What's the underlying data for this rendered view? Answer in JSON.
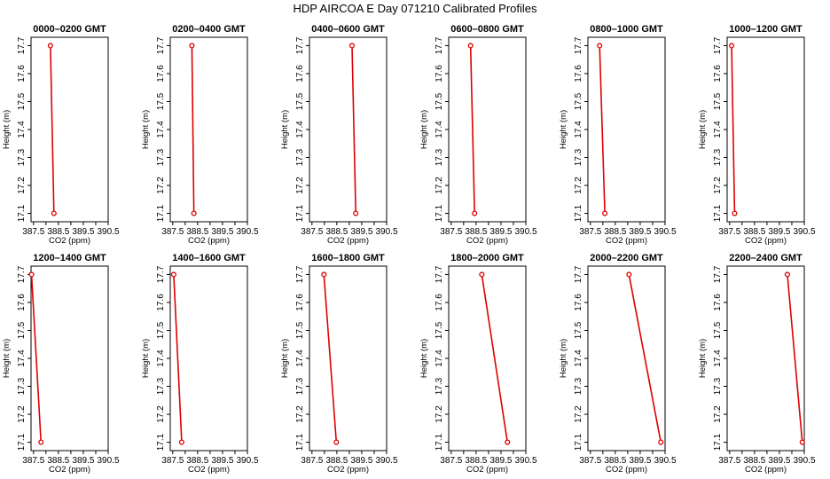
{
  "figure_title": "HDP  AIRCOA E  Day 071210  Calibrated Profiles",
  "colors": {
    "series": "#dd0000",
    "axes": "#000000"
  },
  "chart_data": {
    "type": "line",
    "title": "HDP  AIRCOA E  Day 071210  Calibrated Profiles",
    "xlabel": "CO2 (ppm)",
    "ylabel": "Height (m)",
    "xlim": [
      387.4,
      390.5
    ],
    "ylim": [
      17.07,
      17.73
    ],
    "xticks": [
      "387.5",
      "388.5",
      "389.5",
      "390.5"
    ],
    "xticks_minor": [
      "388",
      "389",
      "390"
    ],
    "yticks": [
      "17.1",
      "17.2",
      "17.3",
      "17.4",
      "17.5",
      "17.6",
      "17.7"
    ],
    "panels": [
      {
        "title": "0000–0200 GMT",
        "heights": [
          17.7,
          17.1
        ],
        "co2": [
          388.18,
          388.32
        ]
      },
      {
        "title": "0200–0400 GMT",
        "heights": [
          17.7,
          17.1
        ],
        "co2": [
          388.27,
          388.35
        ]
      },
      {
        "title": "0400–0600 GMT",
        "heights": [
          17.7,
          17.1
        ],
        "co2": [
          389.11,
          389.26
        ]
      },
      {
        "title": "0600–0800 GMT",
        "heights": [
          17.7,
          17.1
        ],
        "co2": [
          388.28,
          388.44
        ]
      },
      {
        "title": "0800–1000 GMT",
        "heights": [
          17.7,
          17.1
        ],
        "co2": [
          387.87,
          388.08
        ]
      },
      {
        "title": "1000–1200 GMT",
        "heights": [
          17.7,
          17.1
        ],
        "co2": [
          387.58,
          387.7
        ]
      },
      {
        "title": "1200–1400 GMT",
        "heights": [
          17.7,
          17.1
        ],
        "co2": [
          387.42,
          387.8
        ]
      },
      {
        "title": "1400–1600 GMT",
        "heights": [
          17.7,
          17.1
        ],
        "co2": [
          387.54,
          387.86
        ]
      },
      {
        "title": "1600–1800 GMT",
        "heights": [
          17.7,
          17.1
        ],
        "co2": [
          387.98,
          388.48
        ]
      },
      {
        "title": "1800–2000 GMT",
        "heights": [
          17.7,
          17.1
        ],
        "co2": [
          388.73,
          389.76
        ]
      },
      {
        "title": "2000–2200 GMT",
        "heights": [
          17.7,
          17.1
        ],
        "co2": [
          389.05,
          390.33
        ]
      },
      {
        "title": "2200–2400 GMT",
        "heights": [
          17.7,
          17.1
        ],
        "co2": [
          389.82,
          390.42
        ]
      }
    ]
  }
}
